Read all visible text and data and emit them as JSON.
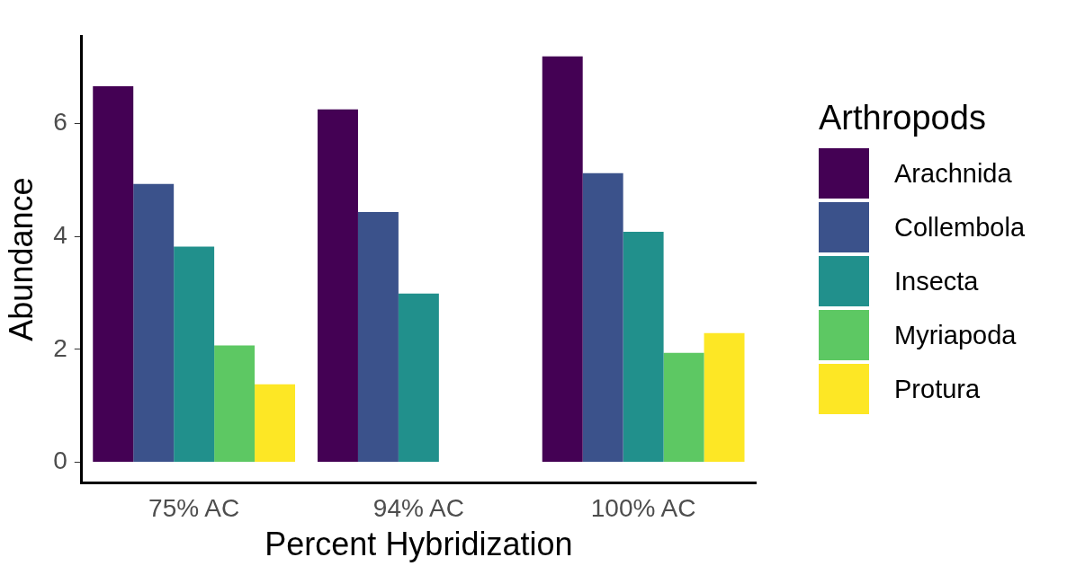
{
  "chart_data": {
    "type": "bar",
    "xlabel": "Percent Hybridization",
    "ylabel": "Abundance",
    "legend_title": "Arthropods",
    "legend": "right",
    "grid": false,
    "categories": [
      "75% AC",
      "94% AC",
      "100% AC"
    ],
    "series": [
      {
        "name": "Arachnida",
        "color": "#440154",
        "values": [
          6.66,
          6.25,
          7.19
        ]
      },
      {
        "name": "Collembola",
        "color": "#3b528b",
        "values": [
          4.93,
          4.43,
          5.12
        ]
      },
      {
        "name": "Insecta",
        "color": "#21908c",
        "values": [
          3.82,
          2.99,
          4.08
        ]
      },
      {
        "name": "Myriapoda",
        "color": "#5dc863",
        "values": [
          2.07,
          null,
          1.94
        ]
      },
      {
        "name": "Protura",
        "color": "#fde725",
        "values": [
          1.38,
          null,
          2.29
        ]
      }
    ],
    "ylim": [
      -0.36,
      7.55
    ],
    "yticks": [
      0,
      2,
      4,
      6
    ]
  }
}
